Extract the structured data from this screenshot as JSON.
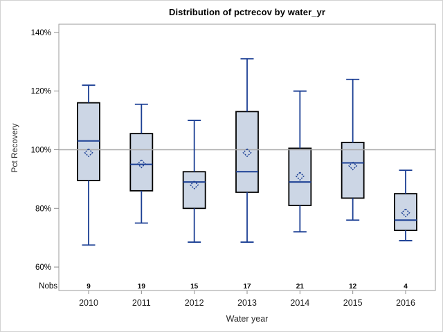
{
  "title": "Distribution of pctrecov by water_yr",
  "chart_data": {
    "type": "boxplot",
    "title": "Distribution of pctrecov by water_yr",
    "xlabel": "Water year",
    "ylabel": "Pct Recovery",
    "categories": [
      "2010",
      "2011",
      "2012",
      "2013",
      "2014",
      "2015",
      "2016"
    ],
    "nobs_label": "Nobs",
    "nobs": [
      9,
      19,
      15,
      17,
      21,
      12,
      4
    ],
    "boxes": [
      {
        "category": "2010",
        "whisker_low": 67.5,
        "q1": 89.5,
        "median": 103,
        "mean": 99,
        "q3": 116,
        "whisker_high": 122
      },
      {
        "category": "2011",
        "whisker_low": 75,
        "q1": 86,
        "median": 95,
        "mean": 95.2,
        "q3": 105.5,
        "whisker_high": 115.5
      },
      {
        "category": "2012",
        "whisker_low": 68.5,
        "q1": 80,
        "median": 89,
        "mean": 88,
        "q3": 92.5,
        "whisker_high": 110
      },
      {
        "category": "2013",
        "whisker_low": 68.5,
        "q1": 85.5,
        "median": 92.5,
        "mean": 99,
        "q3": 113,
        "whisker_high": 131
      },
      {
        "category": "2014",
        "whisker_low": 72,
        "q1": 81,
        "median": 89,
        "mean": 91,
        "q3": 100.5,
        "whisker_high": 120
      },
      {
        "category": "2015",
        "whisker_low": 76,
        "q1": 83.5,
        "median": 95.5,
        "mean": 94.5,
        "q3": 102.5,
        "whisker_high": 124
      },
      {
        "category": "2016",
        "whisker_low": 69,
        "q1": 72.5,
        "median": 76,
        "mean": 78.5,
        "q3": 85,
        "whisker_high": 93
      }
    ],
    "ytick_values": [
      60,
      80,
      100,
      120,
      140
    ],
    "ytick_labels": [
      "60%",
      "80%",
      "100%",
      "120%",
      "140%"
    ],
    "ylim": [
      52,
      142.8
    ],
    "refline_value": 100,
    "legend": "none",
    "grid": "off"
  },
  "colors": {
    "box_fill": "#ccd6e5",
    "box_border": "#000000",
    "line_navy": "#1b3f94",
    "frame_gray": "#9b9b9b",
    "refline_gray": "#a7a7a7",
    "tick_gray": "#8c8c8c",
    "page_border": "#d2d2d2",
    "background": "#ffffff"
  }
}
